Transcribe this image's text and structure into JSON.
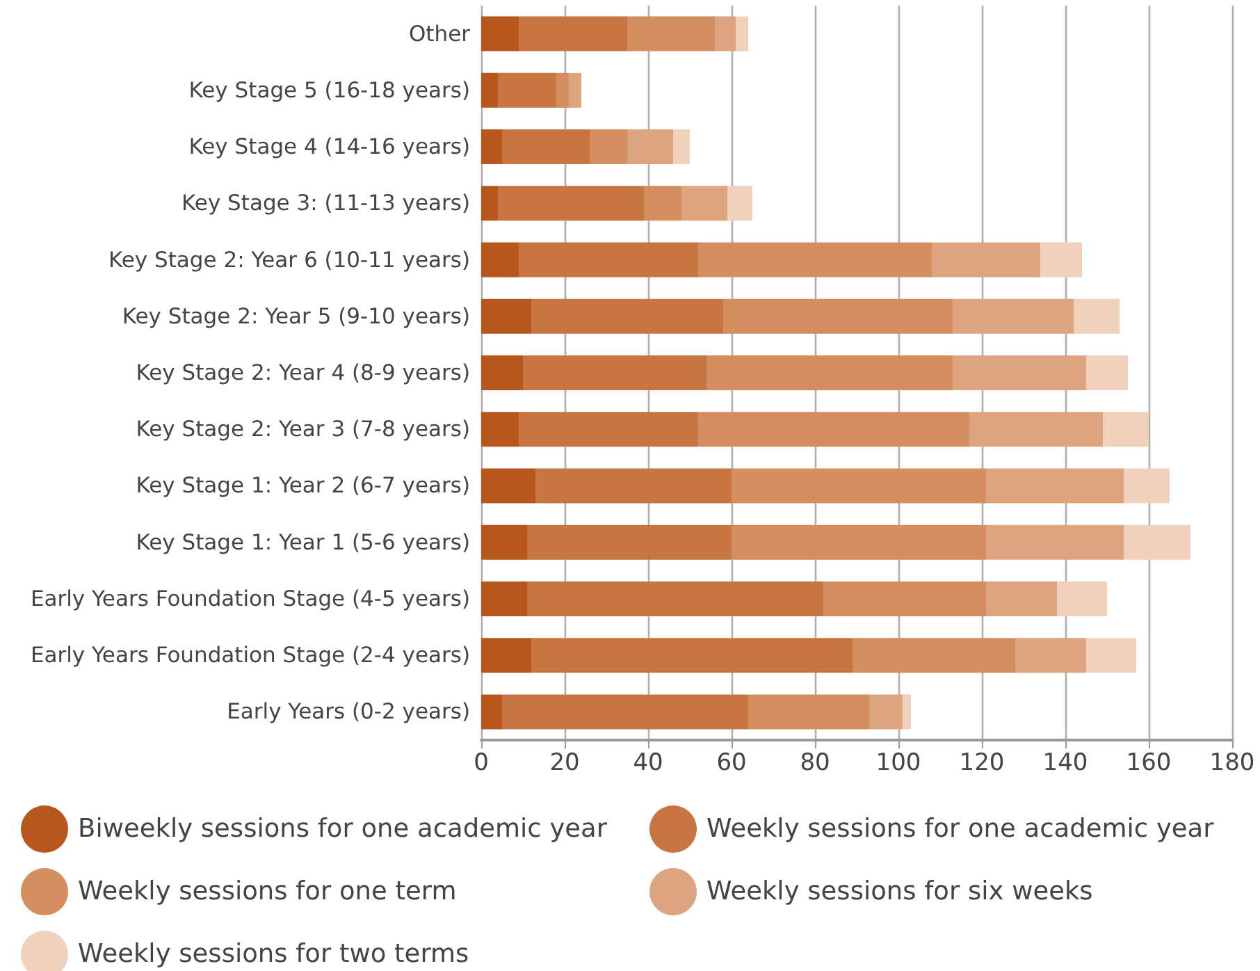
{
  "chart_data": {
    "type": "bar",
    "orientation": "horizontal",
    "stacked": true,
    "categories": [
      "Other",
      "Key Stage 5 (16-18 years)",
      "Key Stage 4 (14-16 years)",
      "Key Stage 3: (11-13 years)",
      "Key Stage 2: Year 6 (10-11 years)",
      "Key Stage 2: Year 5 (9-10 years)",
      "Key Stage 2: Year 4 (8-9 years)",
      "Key Stage 2: Year 3 (7-8 years)",
      "Key Stage 1: Year 2 (6-7 years)",
      "Key Stage 1: Year 1 (5-6 years)",
      "Early Years Foundation Stage (4-5 years)",
      "Early Years Foundation Stage (2-4 years)",
      "Early Years (0-2 years)"
    ],
    "series": [
      {
        "name": "Biweekly sessions for one academic year",
        "color": "#b8571c",
        "values": [
          9,
          4,
          5,
          4,
          9,
          12,
          10,
          9,
          13,
          11,
          11,
          12,
          5
        ]
      },
      {
        "name": "Weekly sessions for one academic year",
        "color": "#c87641",
        "values": [
          26,
          14,
          21,
          35,
          43,
          46,
          44,
          43,
          47,
          49,
          71,
          77,
          59
        ]
      },
      {
        "name": "Weekly sessions for one term",
        "color": "#d48e60",
        "values": [
          21,
          3,
          9,
          9,
          56,
          55,
          59,
          65,
          61,
          61,
          39,
          39,
          29
        ]
      },
      {
        "name": "Weekly sessions for six weeks",
        "color": "#dca57f",
        "values": [
          5,
          3,
          11,
          11,
          26,
          29,
          32,
          32,
          33,
          33,
          17,
          17,
          8
        ]
      },
      {
        "name": "Weekly sessions for two terms",
        "color": "#f0d2bc",
        "values": [
          3,
          0,
          4,
          6,
          10,
          11,
          10,
          11,
          11,
          16,
          12,
          12,
          2
        ]
      }
    ],
    "xlim": [
      0,
      180
    ],
    "xticks": [
      0,
      20,
      40,
      60,
      80,
      100,
      120,
      140,
      160,
      180
    ],
    "grid": "x",
    "legend": "bottom"
  }
}
